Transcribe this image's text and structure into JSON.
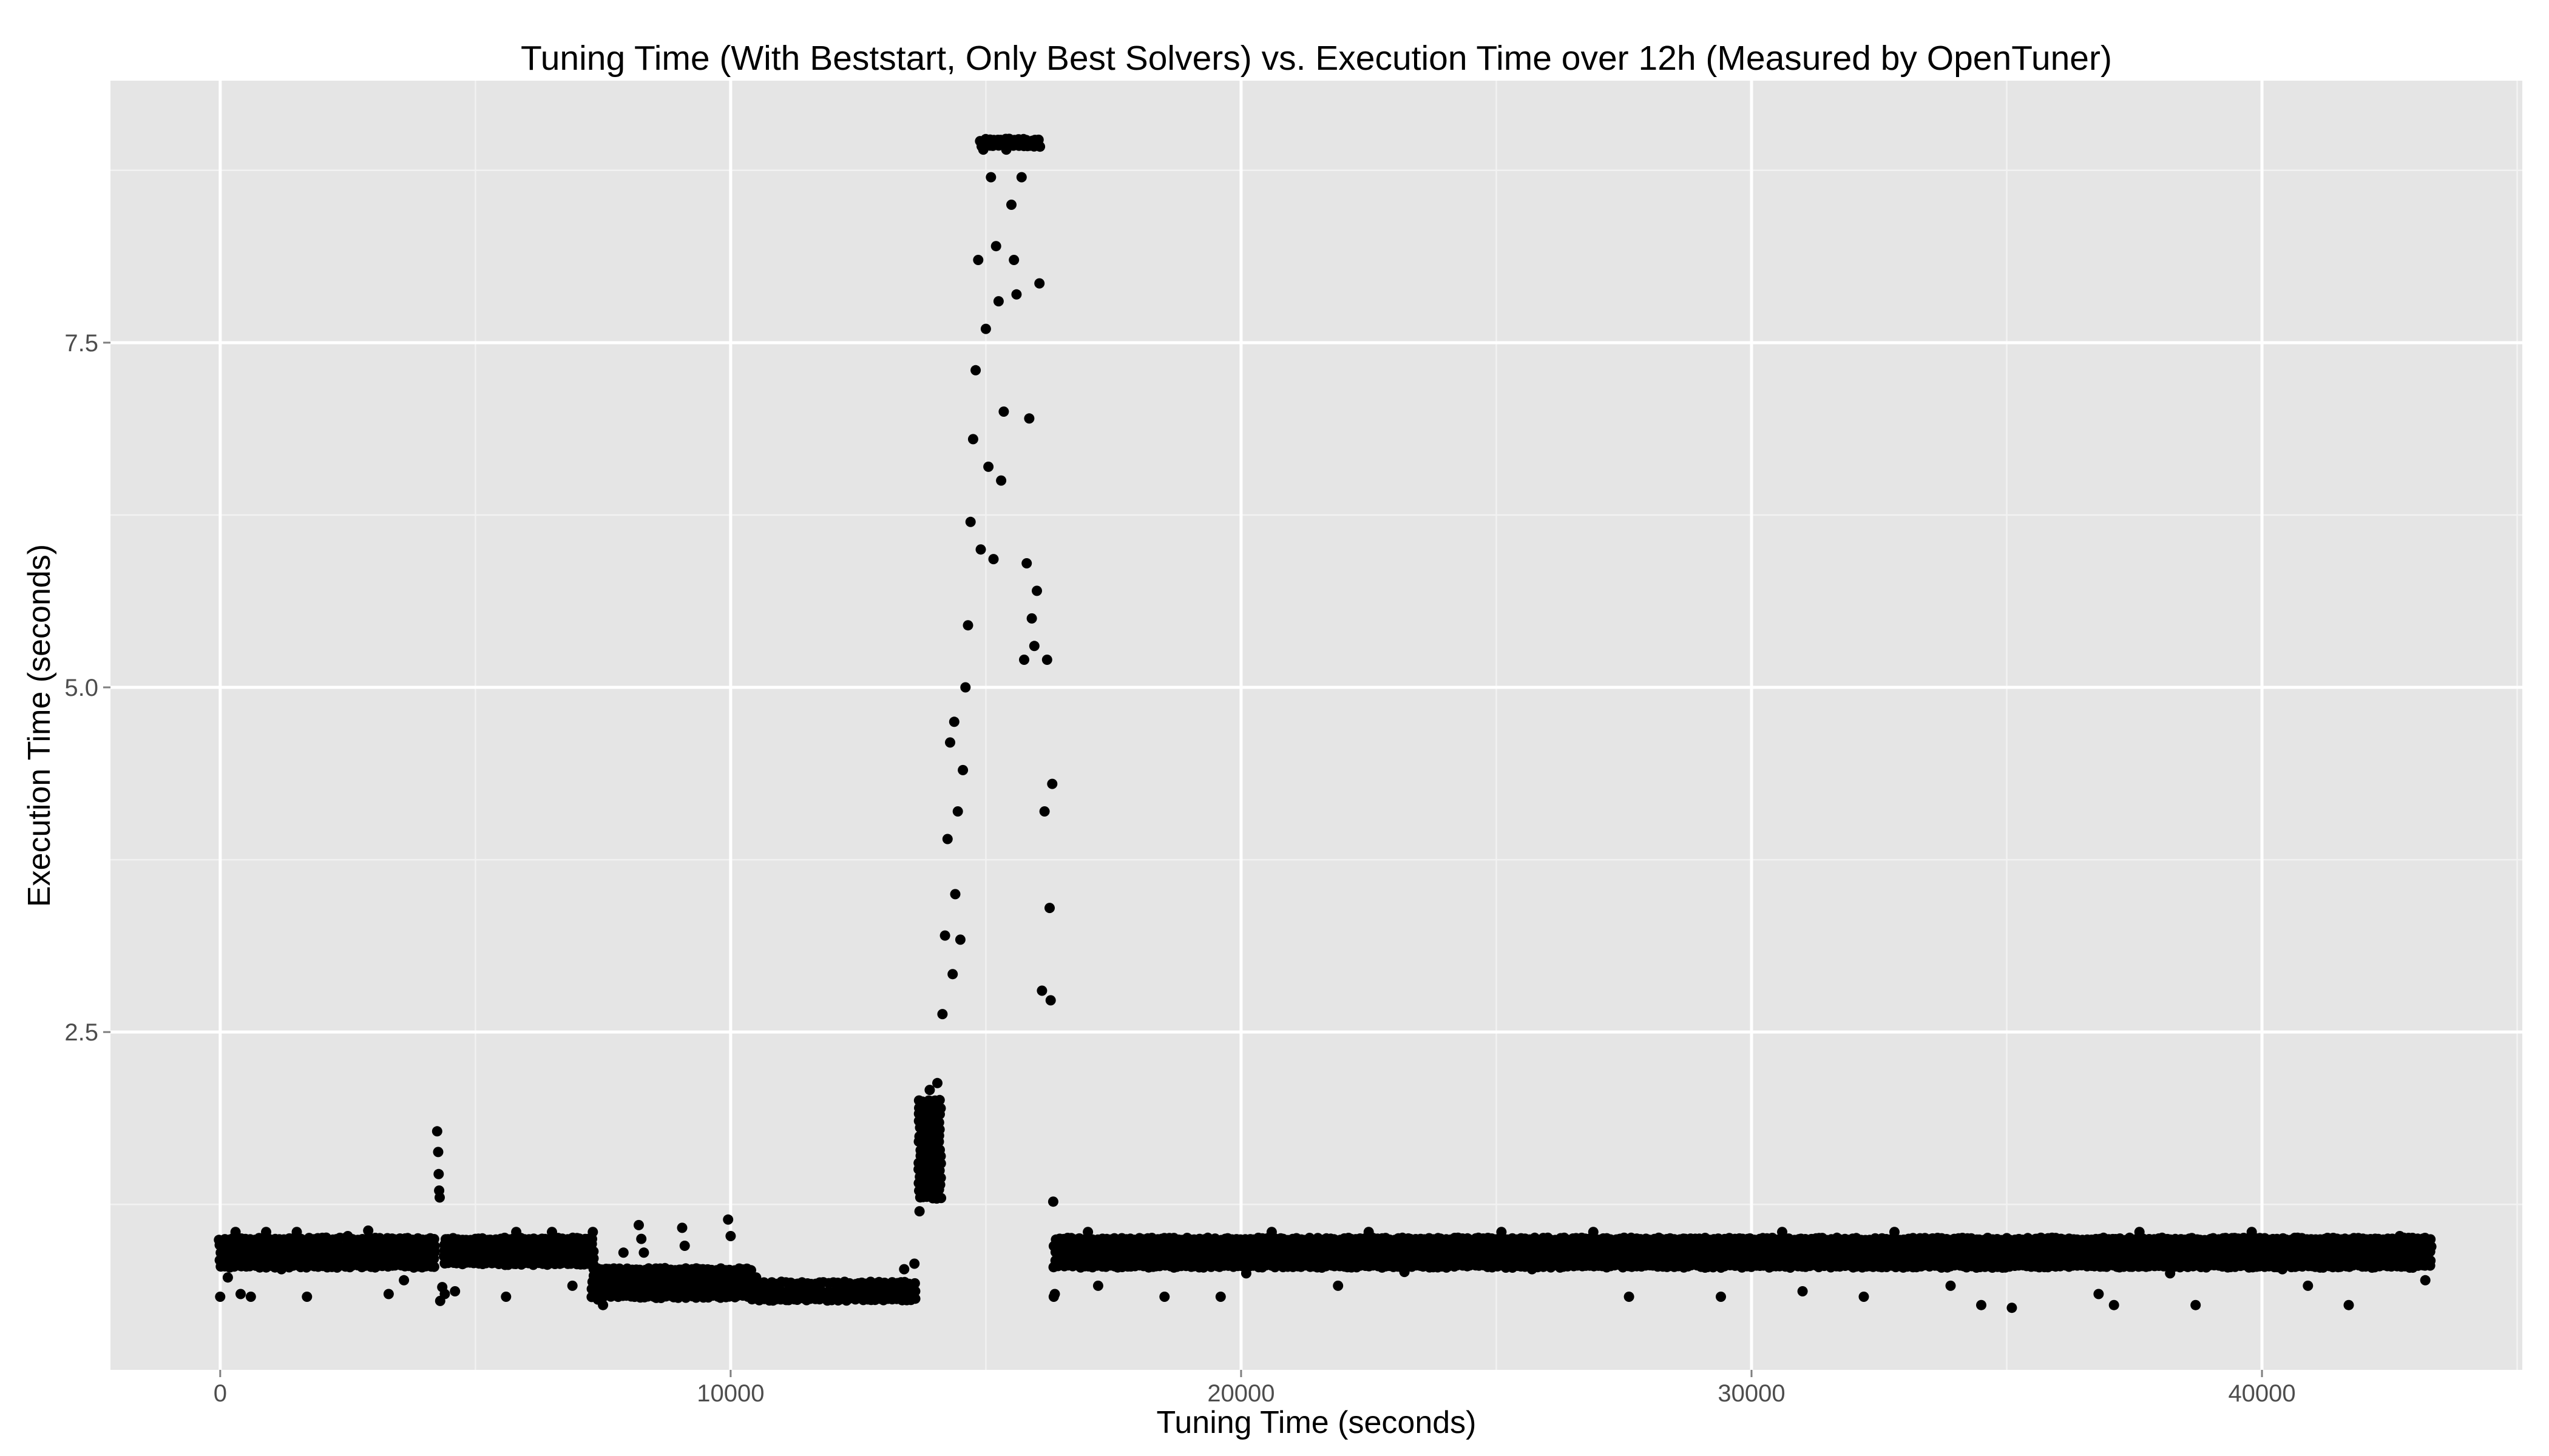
{
  "chart_data": {
    "type": "scatter",
    "title": "Tuning Time (With Beststart, Only Best Solvers) vs. Execution Time over 12h (Measured by OpenTuner)",
    "xlabel": "Tuning Time (seconds)",
    "ylabel": "Execution Time (seconds)",
    "xlim": [
      -2150,
      45100
    ],
    "ylim": [
      0.05,
      9.4
    ],
    "x_ticks": [
      0,
      10000,
      20000,
      30000,
      40000
    ],
    "x_tick_labels": [
      "0",
      "10000",
      "20000",
      "30000",
      "40000"
    ],
    "y_ticks": [
      2.5,
      5.0,
      7.5
    ],
    "y_tick_labels": [
      "2.5",
      "5.0",
      "7.5"
    ],
    "grid": true,
    "legend": "none",
    "point_color": "#000000",
    "panel_background": "#e5e5e5",
    "grid_color": "#ffffff",
    "series": [
      {
        "values": [
          {
            "x": 0,
            "y": 0.58
          },
          {
            "x": 150,
            "y": 0.72
          },
          {
            "x": 300,
            "y": 1.05
          },
          {
            "x": 400,
            "y": 0.6
          },
          {
            "x": 600,
            "y": 0.58
          },
          {
            "x": 900,
            "y": 1.05
          },
          {
            "x": 1200,
            "y": 0.78
          },
          {
            "x": 1500,
            "y": 1.05
          },
          {
            "x": 1700,
            "y": 0.58
          },
          {
            "x": 2100,
            "y": 0.82
          },
          {
            "x": 2500,
            "y": 1.02
          },
          {
            "x": 2900,
            "y": 1.06
          },
          {
            "x": 3300,
            "y": 0.6
          },
          {
            "x": 3600,
            "y": 0.7
          },
          {
            "x": 4000,
            "y": 0.8
          },
          {
            "x": 4250,
            "y": 1.78
          },
          {
            "x": 4270,
            "y": 1.63
          },
          {
            "x": 4280,
            "y": 1.47
          },
          {
            "x": 4290,
            "y": 1.35
          },
          {
            "x": 4300,
            "y": 1.3
          },
          {
            "x": 4310,
            "y": 0.55
          },
          {
            "x": 4350,
            "y": 0.65
          },
          {
            "x": 4400,
            "y": 0.6
          },
          {
            "x": 4600,
            "y": 0.62
          },
          {
            "x": 5000,
            "y": 1.0
          },
          {
            "x": 5300,
            "y": 0.95
          },
          {
            "x": 5600,
            "y": 0.58
          },
          {
            "x": 5800,
            "y": 1.05
          },
          {
            "x": 6200,
            "y": 0.88
          },
          {
            "x": 6500,
            "y": 1.05
          },
          {
            "x": 6900,
            "y": 0.66
          },
          {
            "x": 7300,
            "y": 1.05
          },
          {
            "x": 7400,
            "y": 0.56
          },
          {
            "x": 7500,
            "y": 0.52
          },
          {
            "x": 7700,
            "y": 0.6
          },
          {
            "x": 7900,
            "y": 0.9
          },
          {
            "x": 8100,
            "y": 0.62
          },
          {
            "x": 8200,
            "y": 1.1
          },
          {
            "x": 8250,
            "y": 1.0
          },
          {
            "x": 8300,
            "y": 0.9
          },
          {
            "x": 8500,
            "y": 0.58
          },
          {
            "x": 8800,
            "y": 0.7
          },
          {
            "x": 9050,
            "y": 1.08
          },
          {
            "x": 9100,
            "y": 0.95
          },
          {
            "x": 9300,
            "y": 0.58
          },
          {
            "x": 9600,
            "y": 0.72
          },
          {
            "x": 9950,
            "y": 1.14
          },
          {
            "x": 10000,
            "y": 1.02
          },
          {
            "x": 10200,
            "y": 0.6
          },
          {
            "x": 10500,
            "y": 0.72
          },
          {
            "x": 10800,
            "y": 0.58
          },
          {
            "x": 11300,
            "y": 0.58
          },
          {
            "x": 11800,
            "y": 0.6
          },
          {
            "x": 12300,
            "y": 0.58
          },
          {
            "x": 12800,
            "y": 0.6
          },
          {
            "x": 13200,
            "y": 0.62
          },
          {
            "x": 13400,
            "y": 0.78
          },
          {
            "x": 13600,
            "y": 0.82
          },
          {
            "x": 13700,
            "y": 1.2
          },
          {
            "x": 13750,
            "y": 1.5
          },
          {
            "x": 13800,
            "y": 1.7
          },
          {
            "x": 13850,
            "y": 1.9
          },
          {
            "x": 13900,
            "y": 2.08
          },
          {
            "x": 13950,
            "y": 1.4
          },
          {
            "x": 14000,
            "y": 1.75
          },
          {
            "x": 14050,
            "y": 2.13
          },
          {
            "x": 14100,
            "y": 1.6
          },
          {
            "x": 14150,
            "y": 2.63
          },
          {
            "x": 14200,
            "y": 3.2
          },
          {
            "x": 14250,
            "y": 3.9
          },
          {
            "x": 14300,
            "y": 4.6
          },
          {
            "x": 14350,
            "y": 2.92
          },
          {
            "x": 14380,
            "y": 4.75
          },
          {
            "x": 14400,
            "y": 3.5
          },
          {
            "x": 14450,
            "y": 4.1
          },
          {
            "x": 14500,
            "y": 3.17
          },
          {
            "x": 14550,
            "y": 4.4
          },
          {
            "x": 14600,
            "y": 5.0
          },
          {
            "x": 14650,
            "y": 5.45
          },
          {
            "x": 14700,
            "y": 6.2
          },
          {
            "x": 14750,
            "y": 6.8
          },
          {
            "x": 14800,
            "y": 7.3
          },
          {
            "x": 14850,
            "y": 8.1
          },
          {
            "x": 14900,
            "y": 6.0
          },
          {
            "x": 14950,
            "y": 8.9
          },
          {
            "x": 15000,
            "y": 7.6
          },
          {
            "x": 15050,
            "y": 6.6
          },
          {
            "x": 15100,
            "y": 8.7
          },
          {
            "x": 15150,
            "y": 5.93
          },
          {
            "x": 15200,
            "y": 8.2
          },
          {
            "x": 15250,
            "y": 7.8
          },
          {
            "x": 15300,
            "y": 6.5
          },
          {
            "x": 15350,
            "y": 7.0
          },
          {
            "x": 15400,
            "y": 8.9
          },
          {
            "x": 15500,
            "y": 8.5
          },
          {
            "x": 15550,
            "y": 8.1
          },
          {
            "x": 15600,
            "y": 7.85
          },
          {
            "x": 15700,
            "y": 8.7
          },
          {
            "x": 15750,
            "y": 5.2
          },
          {
            "x": 15800,
            "y": 5.9
          },
          {
            "x": 15850,
            "y": 6.95
          },
          {
            "x": 15900,
            "y": 5.5
          },
          {
            "x": 15950,
            "y": 5.3
          },
          {
            "x": 16000,
            "y": 5.7
          },
          {
            "x": 16050,
            "y": 7.93
          },
          {
            "x": 16100,
            "y": 2.8
          },
          {
            "x": 16150,
            "y": 4.1
          },
          {
            "x": 16200,
            "y": 5.2
          },
          {
            "x": 16250,
            "y": 3.4
          },
          {
            "x": 16270,
            "y": 2.73
          },
          {
            "x": 16300,
            "y": 4.3
          },
          {
            "x": 16320,
            "y": 1.27
          },
          {
            "x": 16330,
            "y": 0.58
          },
          {
            "x": 16350,
            "y": 0.6
          },
          {
            "x": 16500,
            "y": 0.98
          },
          {
            "x": 17000,
            "y": 1.05
          },
          {
            "x": 17200,
            "y": 0.66
          },
          {
            "x": 17800,
            "y": 0.95
          },
          {
            "x": 18300,
            "y": 0.82
          },
          {
            "x": 18500,
            "y": 0.58
          },
          {
            "x": 19100,
            "y": 0.95
          },
          {
            "x": 19600,
            "y": 0.58
          },
          {
            "x": 20100,
            "y": 0.75
          },
          {
            "x": 20600,
            "y": 1.05
          },
          {
            "x": 21300,
            "y": 0.85
          },
          {
            "x": 21900,
            "y": 0.66
          },
          {
            "x": 22500,
            "y": 1.05
          },
          {
            "x": 23200,
            "y": 0.76
          },
          {
            "x": 23800,
            "y": 0.96
          },
          {
            "x": 24500,
            "y": 0.82
          },
          {
            "x": 25100,
            "y": 1.05
          },
          {
            "x": 25700,
            "y": 0.78
          },
          {
            "x": 26300,
            "y": 0.93
          },
          {
            "x": 26900,
            "y": 1.05
          },
          {
            "x": 27600,
            "y": 0.58
          },
          {
            "x": 28100,
            "y": 0.82
          },
          {
            "x": 28700,
            "y": 1.0
          },
          {
            "x": 29400,
            "y": 0.58
          },
          {
            "x": 30000,
            "y": 0.85
          },
          {
            "x": 30600,
            "y": 1.05
          },
          {
            "x": 31000,
            "y": 0.62
          },
          {
            "x": 31600,
            "y": 0.95
          },
          {
            "x": 32200,
            "y": 0.58
          },
          {
            "x": 32800,
            "y": 1.05
          },
          {
            "x": 33300,
            "y": 0.82
          },
          {
            "x": 33900,
            "y": 0.66
          },
          {
            "x": 34500,
            "y": 0.52
          },
          {
            "x": 35100,
            "y": 0.5
          },
          {
            "x": 35600,
            "y": 1.0
          },
          {
            "x": 36200,
            "y": 0.85
          },
          {
            "x": 36800,
            "y": 0.6
          },
          {
            "x": 37100,
            "y": 0.52
          },
          {
            "x": 37600,
            "y": 1.05
          },
          {
            "x": 38200,
            "y": 0.75
          },
          {
            "x": 38700,
            "y": 0.52
          },
          {
            "x": 39300,
            "y": 0.92
          },
          {
            "x": 39800,
            "y": 1.05
          },
          {
            "x": 40400,
            "y": 0.78
          },
          {
            "x": 40900,
            "y": 0.66
          },
          {
            "x": 41500,
            "y": 0.95
          },
          {
            "x": 41700,
            "y": 0.52
          },
          {
            "x": 42200,
            "y": 0.85
          },
          {
            "x": 42700,
            "y": 1.02
          },
          {
            "x": 43200,
            "y": 0.7
          }
        ]
      }
    ],
    "dense_bands": [
      {
        "x_from": 0,
        "x_to": 4200,
        "y_from": 0.8,
        "y_to": 1.0
      },
      {
        "x_from": 4400,
        "y_from": 0.82,
        "x_to": 7300,
        "y_to": 1.0
      },
      {
        "x_from": 7300,
        "x_to": 10400,
        "y_from": 0.58,
        "y_to": 0.78
      },
      {
        "x_from": 10400,
        "x_to": 13600,
        "y_from": 0.56,
        "y_to": 0.68
      },
      {
        "x_from": 13700,
        "x_to": 14100,
        "y_from": 1.3,
        "y_to": 2.0
      },
      {
        "x_from": 14900,
        "x_to": 16050,
        "y_from": 8.93,
        "y_to": 8.97
      },
      {
        "x_from": 16350,
        "x_to": 43300,
        "y_from": 0.8,
        "y_to": 1.0
      }
    ]
  }
}
